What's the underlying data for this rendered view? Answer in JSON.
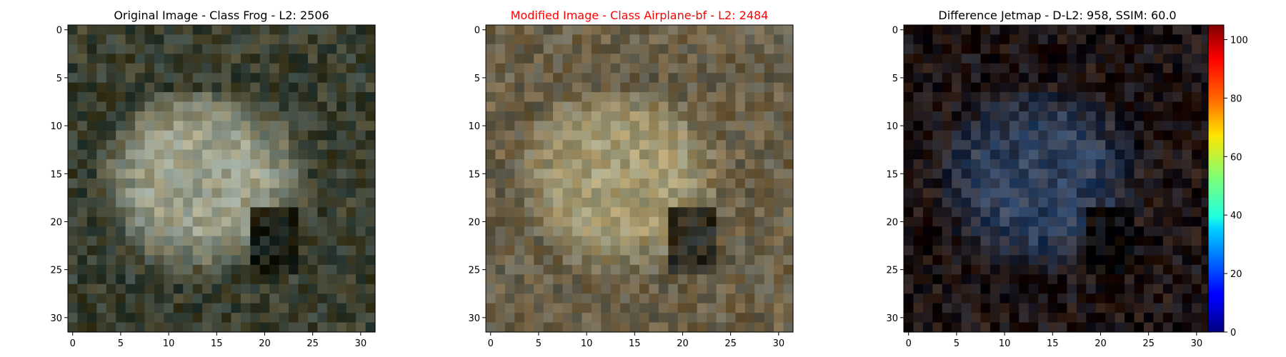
{
  "chart_data": [
    {
      "type": "heatmap",
      "subtype": "rgb-image",
      "title": "Original Image - Class Frog - L2: 2506",
      "title_color": "#000000",
      "xlim": [
        -0.5,
        31.5
      ],
      "ylim": [
        31.5,
        -0.5
      ],
      "xticks": [
        0,
        5,
        10,
        15,
        20,
        25,
        30
      ],
      "yticks": [
        0,
        5,
        10,
        15,
        20,
        25,
        30
      ],
      "xtick_labels": [
        "0",
        "5",
        "10",
        "15",
        "20",
        "25",
        "30"
      ],
      "ytick_labels": [
        "0",
        "5",
        "10",
        "15",
        "20",
        "25",
        "30"
      ],
      "grid": false,
      "pixels": {
        "rows": 32,
        "cols": 32,
        "base_color": "#3a3f30",
        "subject_color": "#9c9f8a",
        "shadow_color": "#15180f"
      }
    },
    {
      "type": "heatmap",
      "subtype": "rgb-image",
      "title": "Modified Image - Class Airplane-bf - L2: 2484",
      "title_color": "#ff0000",
      "xlim": [
        -0.5,
        31.5
      ],
      "ylim": [
        31.5,
        -0.5
      ],
      "xticks": [
        0,
        5,
        10,
        15,
        20,
        25,
        30
      ],
      "yticks": [
        0,
        5,
        10,
        15,
        20,
        25,
        30
      ],
      "xtick_labels": [
        "0",
        "5",
        "10",
        "15",
        "20",
        "25",
        "30"
      ],
      "ytick_labels": [
        "0",
        "5",
        "10",
        "15",
        "20",
        "25",
        "30"
      ],
      "grid": false,
      "pixels": {
        "rows": 32,
        "cols": 32,
        "base_color": "#6b6049",
        "subject_color": "#a49a73",
        "shadow_color": "#1a1a14"
      }
    },
    {
      "type": "heatmap",
      "subtype": "difference-jetmap",
      "title": "Difference Jetmap - D-L2: 958, SSIM: 60.0",
      "title_color": "#000000",
      "xlim": [
        -0.5,
        31.5
      ],
      "ylim": [
        31.5,
        -0.5
      ],
      "xticks": [
        0,
        5,
        10,
        15,
        20,
        25,
        30
      ],
      "yticks": [
        0,
        5,
        10,
        15,
        20,
        25,
        30
      ],
      "xtick_labels": [
        "0",
        "5",
        "10",
        "15",
        "20",
        "25",
        "30"
      ],
      "ytick_labels": [
        "0",
        "5",
        "10",
        "15",
        "20",
        "25",
        "30"
      ],
      "grid": false,
      "pixels": {
        "rows": 32,
        "cols": 32,
        "base_color": "#1e1414",
        "subject_color": "#2f3f5a",
        "shadow_color": "#0a0a0a"
      },
      "colorbar": {
        "colormap": "jet",
        "range": [
          0,
          105
        ],
        "ticks": [
          0,
          20,
          40,
          60,
          80,
          100
        ],
        "tick_labels": [
          "0",
          "20",
          "40",
          "60",
          "80",
          "100"
        ]
      }
    }
  ]
}
